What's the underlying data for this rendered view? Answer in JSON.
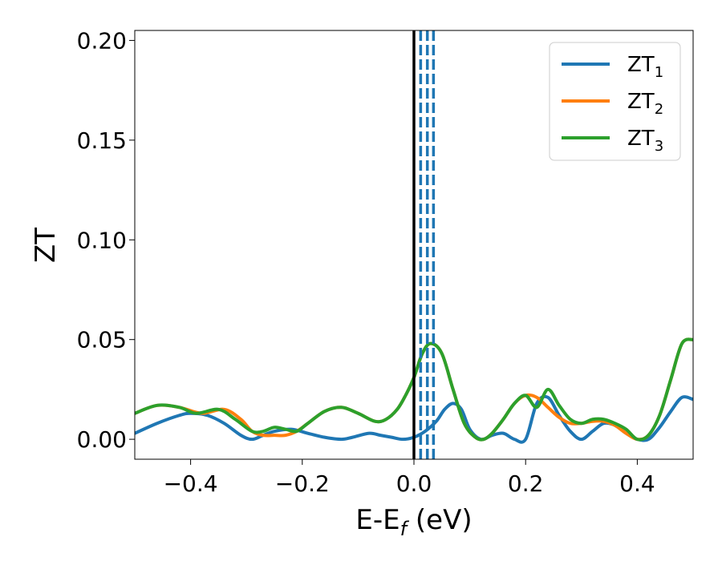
{
  "chart_data": {
    "type": "line",
    "title": "",
    "xlabel_main": "E-E",
    "xlabel_sub": "f",
    "xlabel_unit": " (eV)",
    "ylabel": "ZT",
    "xlim": [
      -0.5,
      0.5
    ],
    "ylim": [
      -0.01,
      0.205
    ],
    "xticks": [
      -0.4,
      -0.2,
      0.0,
      0.2,
      0.4
    ],
    "xtick_labels": [
      "−0.4",
      "−0.2",
      "0.0",
      "0.2",
      "0.4"
    ],
    "yticks": [
      0.0,
      0.05,
      0.1,
      0.15,
      0.2
    ],
    "ytick_labels": [
      "0.00",
      "0.05",
      "0.10",
      "0.15",
      "0.20"
    ],
    "grid": false,
    "legend_position": "top-right",
    "fermi_line_x": 0.0,
    "dashed_lines_x": [
      0.012,
      0.024,
      0.035
    ],
    "series": [
      {
        "name": "ZT",
        "name_sub": "1",
        "color": "#1f77b4",
        "x": [
          -0.5,
          -0.46,
          -0.42,
          -0.4,
          -0.37,
          -0.34,
          -0.31,
          -0.29,
          -0.27,
          -0.25,
          -0.22,
          -0.19,
          -0.16,
          -0.13,
          -0.11,
          -0.08,
          -0.06,
          -0.04,
          -0.02,
          0.0,
          0.02,
          0.04,
          0.055,
          0.07,
          0.085,
          0.1,
          0.12,
          0.14,
          0.16,
          0.18,
          0.2,
          0.22,
          0.24,
          0.26,
          0.28,
          0.3,
          0.32,
          0.34,
          0.36,
          0.38,
          0.4,
          0.42,
          0.44,
          0.46,
          0.48,
          0.5
        ],
        "y": [
          0.003,
          0.008,
          0.012,
          0.013,
          0.012,
          0.008,
          0.002,
          0.0,
          0.002,
          0.004,
          0.005,
          0.003,
          0.001,
          0.0,
          0.001,
          0.003,
          0.002,
          0.001,
          0.0,
          0.001,
          0.004,
          0.009,
          0.015,
          0.018,
          0.015,
          0.005,
          0.0,
          0.002,
          0.003,
          0.0,
          0.0,
          0.018,
          0.021,
          0.012,
          0.004,
          0.0,
          0.004,
          0.008,
          0.007,
          0.003,
          0.0,
          0.0,
          0.006,
          0.014,
          0.021,
          0.02
        ]
      },
      {
        "name": "ZT",
        "name_sub": "2",
        "color": "#ff7f0e",
        "x": [
          -0.5,
          -0.46,
          -0.42,
          -0.38,
          -0.34,
          -0.31,
          -0.29,
          -0.27,
          -0.25,
          -0.23,
          -0.21,
          -0.19,
          -0.16,
          -0.13,
          -0.1,
          -0.07,
          -0.05,
          -0.03,
          -0.015,
          0.0,
          0.015,
          0.03,
          0.05,
          0.07,
          0.09,
          0.11,
          0.125,
          0.14,
          0.16,
          0.18,
          0.2,
          0.22,
          0.24,
          0.26,
          0.28,
          0.3,
          0.32,
          0.34,
          0.36,
          0.38,
          0.4,
          0.42,
          0.44,
          0.46,
          0.48,
          0.5
        ],
        "y": [
          0.013,
          0.017,
          0.016,
          0.013,
          0.015,
          0.01,
          0.004,
          0.002,
          0.002,
          0.002,
          0.004,
          0.008,
          0.014,
          0.016,
          0.013,
          0.009,
          0.01,
          0.015,
          0.022,
          0.031,
          0.043,
          0.048,
          0.043,
          0.025,
          0.008,
          0.001,
          0.0,
          0.003,
          0.01,
          0.018,
          0.022,
          0.021,
          0.016,
          0.011,
          0.008,
          0.008,
          0.009,
          0.009,
          0.007,
          0.003,
          0.0,
          0.002,
          0.012,
          0.03,
          0.048,
          0.05
        ]
      },
      {
        "name": "ZT",
        "name_sub": "3",
        "color": "#2ca02c",
        "x": [
          -0.5,
          -0.46,
          -0.42,
          -0.39,
          -0.35,
          -0.32,
          -0.29,
          -0.27,
          -0.25,
          -0.23,
          -0.21,
          -0.19,
          -0.16,
          -0.13,
          -0.1,
          -0.07,
          -0.05,
          -0.03,
          -0.015,
          0.0,
          0.015,
          0.03,
          0.05,
          0.07,
          0.09,
          0.11,
          0.125,
          0.14,
          0.16,
          0.18,
          0.2,
          0.22,
          0.24,
          0.26,
          0.28,
          0.3,
          0.32,
          0.34,
          0.36,
          0.38,
          0.4,
          0.42,
          0.44,
          0.46,
          0.48,
          0.5
        ],
        "y": [
          0.013,
          0.017,
          0.016,
          0.013,
          0.015,
          0.01,
          0.004,
          0.004,
          0.006,
          0.005,
          0.004,
          0.008,
          0.014,
          0.016,
          0.013,
          0.009,
          0.01,
          0.015,
          0.022,
          0.031,
          0.043,
          0.048,
          0.043,
          0.025,
          0.008,
          0.001,
          0.0,
          0.003,
          0.01,
          0.018,
          0.022,
          0.016,
          0.025,
          0.017,
          0.01,
          0.008,
          0.01,
          0.01,
          0.008,
          0.005,
          0.0,
          0.002,
          0.012,
          0.03,
          0.048,
          0.05
        ]
      }
    ]
  }
}
